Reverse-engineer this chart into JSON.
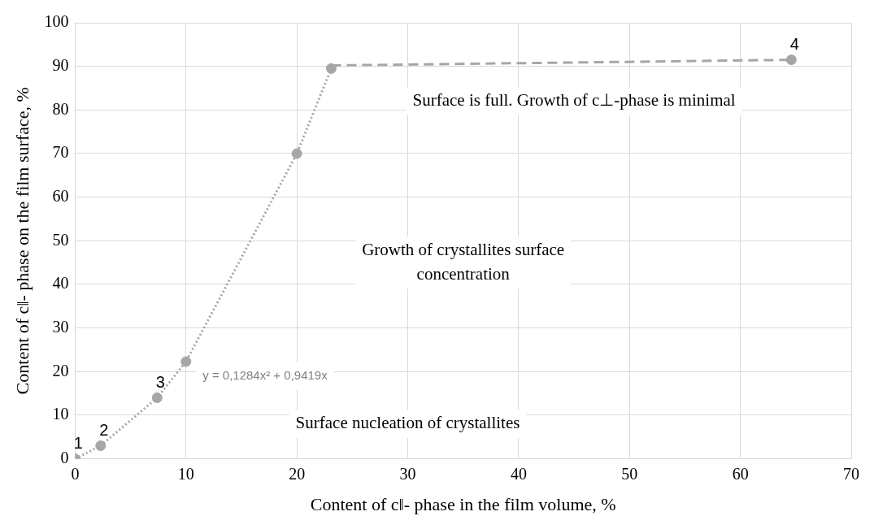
{
  "chart_data": {
    "type": "scatter",
    "xlabel": "Content of c‖- phase in the film volume, %",
    "ylabel": "Content of c‖- phase on the film surface, %",
    "series": [
      {
        "type": "line",
        "color": "#a6a6a6",
        "line_style": "dotted",
        "marker": "none",
        "x": [
          0,
          2.3,
          7.4,
          10,
          20,
          23.1
        ],
        "values": [
          0,
          3,
          14,
          22.3,
          70,
          89.5
        ]
      },
      {
        "type": "line",
        "color": "#a6a6a6",
        "line_style": "dashed",
        "marker": "none",
        "x": [
          23.1,
          64.6
        ],
        "values": [
          90.2,
          91.5
        ]
      },
      {
        "type": "scatter",
        "color": "#a6a6a6",
        "marker": "circle",
        "x": [
          0,
          2.3,
          7.4,
          10,
          20,
          23.1,
          64.6
        ],
        "values": [
          0,
          3,
          14,
          22.3,
          70,
          89.5,
          91.5
        ]
      }
    ],
    "xlim": [
      0,
      70
    ],
    "xticks": [
      0,
      10,
      20,
      30,
      40,
      50,
      60,
      70
    ],
    "ylim": [
      0,
      100
    ],
    "yticks": [
      0,
      10,
      20,
      30,
      40,
      50,
      60,
      70,
      80,
      90,
      100
    ],
    "grid": true,
    "legend": false,
    "annotations": [
      {
        "text": "1",
        "x": 0,
        "y": 0
      },
      {
        "text": "2",
        "x": 2.3,
        "y": 3
      },
      {
        "text": "3",
        "x": 7.4,
        "y": 14
      },
      {
        "text": "4",
        "x": 64.6,
        "y": 91.5
      },
      "y = 0,1284x² + 0,9419x",
      "Surface nucleation of crystallites",
      "Growth of crystallites surface\nconcentration",
      "Surface is full. Growth of c⊥-phase is minimal"
    ]
  }
}
